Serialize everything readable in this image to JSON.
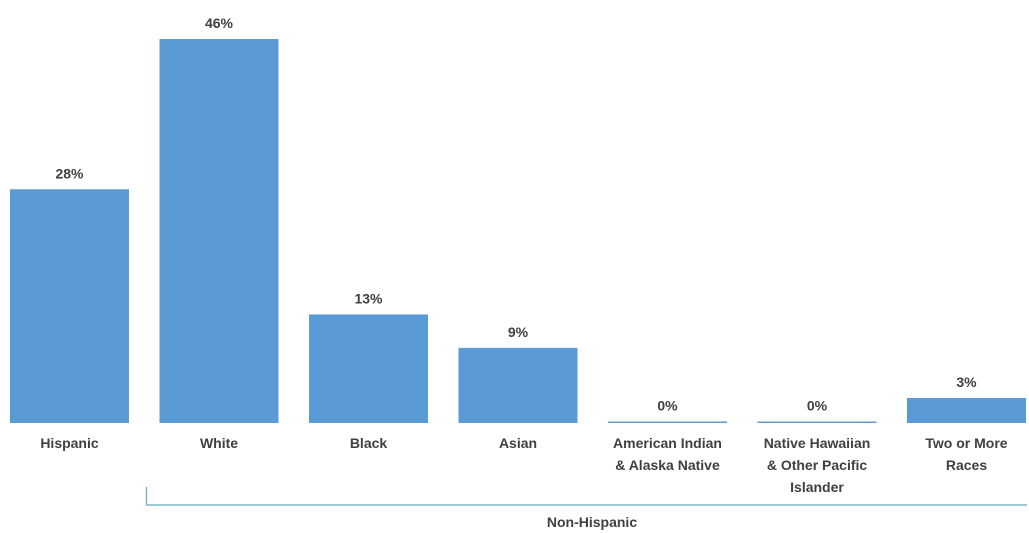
{
  "chart_data": {
    "type": "bar",
    "categories": [
      [
        "Hispanic"
      ],
      [
        "White"
      ],
      [
        "Black"
      ],
      [
        "Asian"
      ],
      [
        "American Indian",
        "& Alaska Native"
      ],
      [
        "Native Hawaiian",
        "& Other Pacific",
        "Islander"
      ],
      [
        "Two or More",
        "Races"
      ]
    ],
    "values": [
      28,
      46,
      13,
      9,
      0,
      0,
      3
    ],
    "value_labels": [
      "28%",
      "46%",
      "13%",
      "9%",
      "0%",
      "0%",
      "3%"
    ],
    "unit": "%",
    "ylim": [
      0,
      46
    ],
    "grid": false,
    "legend": "none",
    "bar_color": "#5b9bd5",
    "group_bracket": {
      "label": "Non-Hispanic",
      "from_index": 1,
      "to_index": 6,
      "color": "#7fb7c9"
    }
  }
}
